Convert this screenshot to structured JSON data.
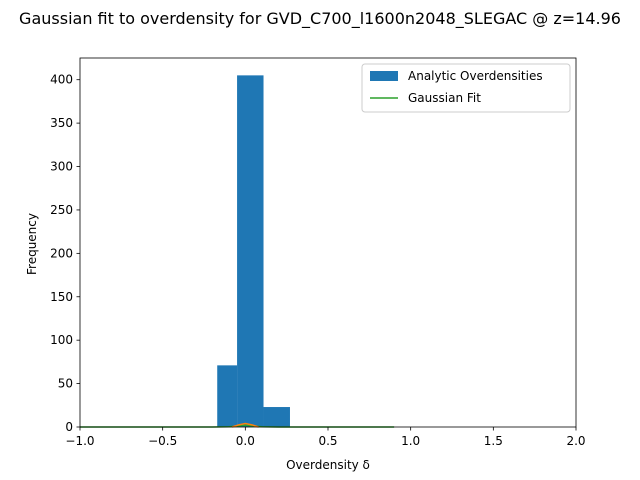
{
  "chart_data": {
    "type": "bar",
    "title": "Gaussian fit to overdensity for GVD_C700_l1600n2048_SLEGAC @ z=14.96",
    "xlabel": "Overdensity δ",
    "ylabel": "Frequency",
    "xlim": [
      -1.0,
      2.0
    ],
    "ylim": [
      0,
      425
    ],
    "grid": false,
    "legend_position": "top-right",
    "x_ticks": [
      -1.0,
      -0.5,
      0.0,
      0.5,
      1.0,
      1.5,
      2.0
    ],
    "x_tick_labels": [
      "−1.0",
      "−0.5",
      "0.0",
      "0.5",
      "1.0",
      "1.5",
      "2.0"
    ],
    "y_ticks": [
      0,
      50,
      100,
      150,
      200,
      250,
      300,
      350,
      400
    ],
    "y_tick_labels": [
      "0",
      "50",
      "100",
      "150",
      "200",
      "250",
      "300",
      "350",
      "400"
    ],
    "series": [
      {
        "name": "Analytic Overdensities",
        "kind": "histogram",
        "color": "#1f77b4",
        "bins": [
          {
            "x0": -1.0,
            "x1": -0.79,
            "value": 0
          },
          {
            "x0": -0.79,
            "x1": -0.58,
            "value": 0
          },
          {
            "x0": -0.58,
            "x1": -0.38,
            "value": 0
          },
          {
            "x0": -0.38,
            "x1": -0.17,
            "value": 0
          },
          {
            "x0": -0.17,
            "x1": -0.05,
            "value": 71
          },
          {
            "x0": -0.05,
            "x1": 0.11,
            "value": 405
          },
          {
            "x0": 0.11,
            "x1": 0.27,
            "value": 23
          },
          {
            "x0": 0.27,
            "x1": 0.48,
            "value": 0
          },
          {
            "x0": 0.48,
            "x1": 0.69,
            "value": 0
          },
          {
            "x0": 0.69,
            "x1": 0.9,
            "value": 0
          }
        ]
      },
      {
        "name": "Gaussian Fit",
        "kind": "line",
        "color": "#2ca02c",
        "x": [
          -1.0,
          -0.5,
          -0.2,
          -0.1,
          -0.05,
          0.0,
          0.05,
          0.1,
          0.2,
          0.5,
          0.9
        ],
        "y": [
          0,
          0,
          0,
          0.3,
          1.2,
          2.0,
          1.2,
          0.3,
          0,
          0,
          0
        ]
      },
      {
        "kind": "line",
        "color": "#ff7f0e",
        "x": [
          -0.08,
          -0.04,
          0.0,
          0.04,
          0.08
        ],
        "y": [
          0,
          2.5,
          4.0,
          2.5,
          0
        ]
      }
    ]
  }
}
